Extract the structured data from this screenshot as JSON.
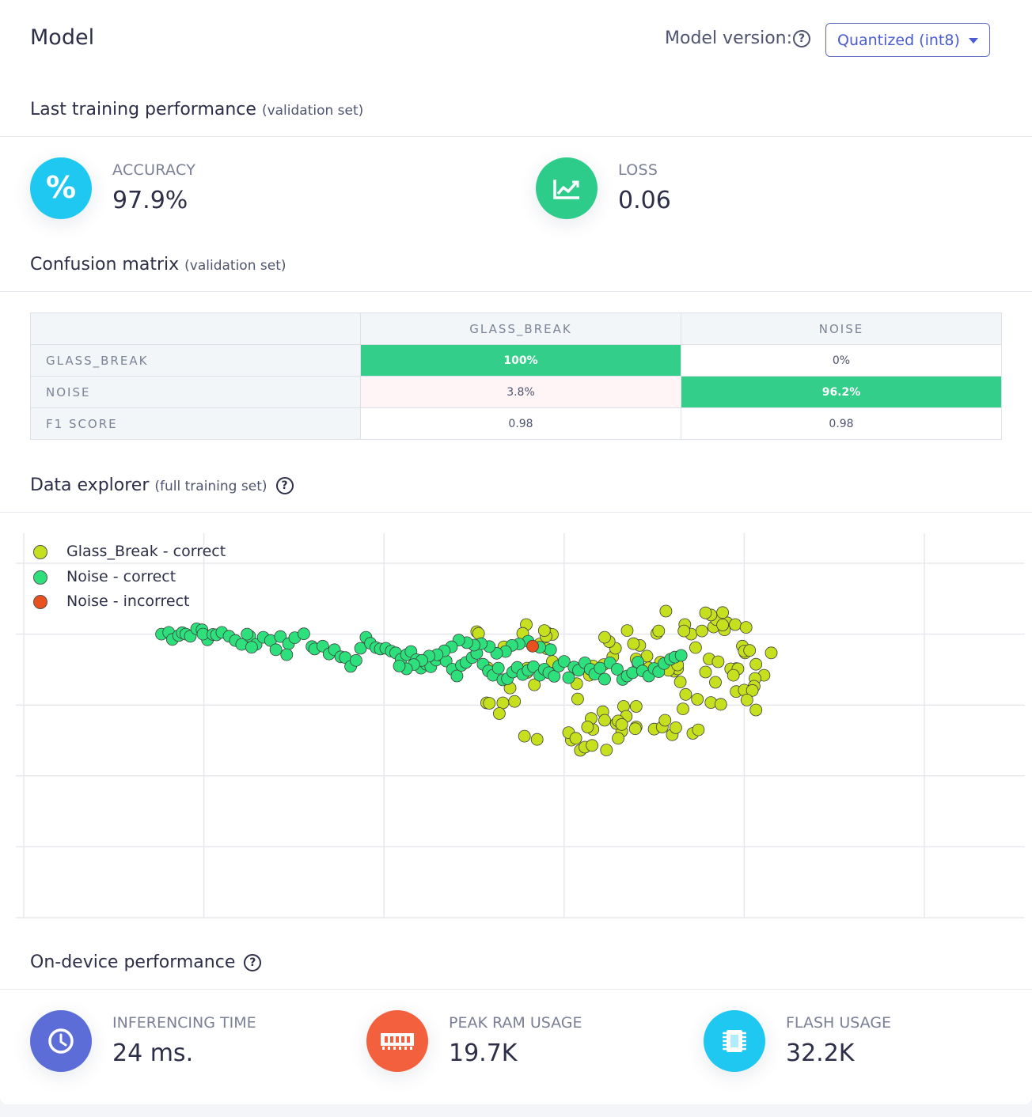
{
  "header": {
    "title": "Model",
    "model_version_label": "Model version:",
    "model_version_value": "Quantized (int8)"
  },
  "training": {
    "title": "Last training performance",
    "subtitle": "(validation set)",
    "accuracy_label": "ACCURACY",
    "accuracy_value": "97.9%",
    "loss_label": "LOSS",
    "loss_value": "0.06",
    "accuracy_icon": "percent-icon",
    "loss_icon": "chart-trend-icon",
    "accuracy_color": "#1ec8f0",
    "loss_color": "#2ecc8a"
  },
  "confusion": {
    "title": "Confusion matrix",
    "subtitle": "(validation set)",
    "columns": [
      "GLASS_BREAK",
      "NOISE"
    ],
    "rows": [
      {
        "label": "GLASS_BREAK",
        "cells": [
          "100%",
          "0%"
        ]
      },
      {
        "label": "NOISE",
        "cells": [
          "3.8%",
          "96.2%"
        ]
      },
      {
        "label": "F1 SCORE",
        "cells": [
          "0.98",
          "0.98"
        ]
      }
    ]
  },
  "explorer": {
    "title": "Data explorer",
    "subtitle": "(full training set)",
    "legend": [
      {
        "label": "Glass_Break - correct",
        "color": "#c6e020"
      },
      {
        "label": "Noise - correct",
        "color": "#2ee07c"
      },
      {
        "label": "Noise - incorrect",
        "color": "#e8501e"
      }
    ]
  },
  "chart_data": {
    "type": "scatter",
    "grid": true,
    "legend_position": "top-left",
    "xlim": [
      0,
      100
    ],
    "ylim": [
      0,
      100
    ],
    "series": [
      {
        "name": "Glass_Break - correct",
        "color": "#c6e020",
        "x": [
          50.3,
          50.5,
          55.8,
          55.4,
          58.1,
          58.7,
          53.3,
          57.3,
          58.1,
          55.9,
          55.9,
          54.5,
          61.5,
          64.3,
          66.6,
          68.0,
          68.0,
          70.0,
          66.4,
          67.9,
          70.9,
          71.2,
          72.0,
          74.3,
          73.2,
          76.8,
          72.2,
          72.9,
          75.7,
          79.1,
          78.5,
          80.1,
          79.8,
          80.0,
          81.3,
          79.3,
          82.2,
          81.2,
          78.8,
          81.1,
          79.1,
          80.0,
          80.9,
          80.3,
          81.3,
          76.3,
          77.4,
          74.8,
          73.5,
          72.6,
          70.7,
          71.6,
          72.6,
          76.1,
          77.1,
          69.2,
          68.4,
          68.0,
          68.2,
          69.4,
          67.7,
          74.1,
          73.4,
          75.3,
          76.6,
          76.9,
          78.1,
          77.6,
          77.8,
          76.3,
          77.6,
          79.0,
          80.2,
          71.3,
          75.7,
          58.0,
          57.8,
          58.7,
          56.7,
          54.0,
          51.5,
          51.4,
          51.7,
          53.2,
          52.8,
          55.6,
          57.0,
          60.8,
          60.5,
          63.2,
          63.0,
          65.8,
          66.0,
          61.8,
          62.3,
          64.7,
          63.1,
          61.3,
          62.6,
          64.5,
          66.9,
          66.0,
          66.4,
          61.4,
          62.8,
          63.2,
          64.4,
          65.4,
          65.7,
          65.0,
          64.5,
          67.0,
          70.3,
          73.3,
          70.5,
          74.6,
          80.6,
          72.4,
          74.9,
          83.0
        ],
        "y": [
          80.7,
          80.2,
          82.7,
          80.2,
          80.4,
          79.9,
          76.4,
          77.2,
          75.9,
          70.4,
          69.2,
          61.0,
          61.7,
          58.1,
          59.6,
          59.6,
          53.8,
          53.2,
          52.6,
          53.3,
          53.8,
          55.7,
          51.6,
          52.0,
          58.9,
          66.4,
          69.5,
          66.5,
          69.3,
          70.3,
          70.2,
          74.7,
          76.6,
          75.2,
          71.5,
          70.2,
          68.4,
          67.5,
          68.4,
          65.3,
          63.8,
          64.2,
          64.1,
          61.4,
          58.6,
          60.7,
          60.2,
          61.6,
          63.0,
          70.2,
          72.1,
          69.8,
          71.3,
          73.0,
          72.2,
          73.8,
          76.8,
          73.0,
          71.7,
          70.5,
          77.3,
          80.0,
          82.7,
          80.9,
          82.0,
          84.1,
          83.2,
          86.1,
          81.2,
          85.4,
          82.6,
          82.7,
          81.9,
          86.5,
          86.0,
          79.4,
          81.0,
          72.3,
          65.7,
          64.8,
          70.5,
          60.6,
          60.5,
          60.6,
          57.6,
          51.2,
          50.3,
          50.1,
          52.2,
          53.1,
          56.2,
          54.8,
          50.6,
          47.2,
          48.1,
          47.3,
          48.6,
          50.6,
          53.8,
          55.7,
          56.8,
          55.5,
          54.5,
          66.0,
          68.4,
          71.0,
          71.4,
          73.6,
          76.0,
          77.9,
          79.1,
          81.0,
          80.2,
          80.9,
          80.9,
          76.2,
          75.4,
          53.6,
          53.0,
          74.7
        ]
      },
      {
        "name": "Noise - correct",
        "color": "#2ee07c",
        "x": [
          15.3,
          16.1,
          16.5,
          17.2,
          17.6,
          18.0,
          18.5,
          19.2,
          19.8,
          20.4,
          19.9,
          21.0,
          21.4,
          22.0,
          22.8,
          23.5,
          24.2,
          25.1,
          24.8,
          25.8,
          25.3,
          26.6,
          27.4,
          28.0,
          28.5,
          29.4,
          29.2,
          30.1,
          31.1,
          32.0,
          32.3,
          33.2,
          33.9,
          34.5,
          35.2,
          35.7,
          36.3,
          36.9,
          37.4,
          38.0,
          38.5,
          39.1,
          39.6,
          40.2,
          40.8,
          41.3,
          41.9,
          42.5,
          43.0,
          43.6,
          44.1,
          44.7,
          45.2,
          45.8,
          46.3,
          46.9,
          47.6,
          48.1,
          48.6,
          49.1,
          49.8,
          50.3,
          51.0,
          51.6,
          52.1,
          52.7,
          53.2,
          53.7,
          54.3,
          54.8,
          55.4,
          56.0,
          56.6,
          57.3,
          57.8,
          58.3,
          58.9,
          59.4,
          60.0,
          60.5,
          61.1,
          61.6,
          62.3,
          62.9,
          63.4,
          64.0,
          64.5,
          65.1,
          65.9,
          66.5,
          67.0,
          67.6,
          68.2,
          68.7,
          69.4,
          70.0,
          70.5,
          71.1,
          71.8,
          72.3,
          73.0,
          58.5,
          57.3,
          56.0,
          55.0,
          54.2,
          53.5,
          52.5,
          51.7,
          50.8,
          50.0,
          49.2,
          48.3,
          47.5,
          46.7,
          45.9,
          45.0,
          44.2,
          43.3,
          42.5,
          41.7
        ],
        "y": [
          80.0,
          80.5,
          78.5,
          79.6,
          80.4,
          80.0,
          79.4,
          81.5,
          81.2,
          78.4,
          80.0,
          79.9,
          79.8,
          80.5,
          79.4,
          78.2,
          77.1,
          79.4,
          80.0,
          77.1,
          76.3,
          79.1,
          78.2,
          75.6,
          79.3,
          77.3,
          74.2,
          79.0,
          80.1,
          76.5,
          75.8,
          76.6,
          74.4,
          75.6,
          73.6,
          73.4,
          70.9,
          72.6,
          76.0,
          79.1,
          77.4,
          76.2,
          75.8,
          76.0,
          75.2,
          74.7,
          72.9,
          74.2,
          75.1,
          72.8,
          70.4,
          71.5,
          70.8,
          72.7,
          74.1,
          72.4,
          70.1,
          68.2,
          71.2,
          72.0,
          73.4,
          74.6,
          71.5,
          69.6,
          68.4,
          70.4,
          67.1,
          67.4,
          69.3,
          70.6,
          68.6,
          69.8,
          70.8,
          68.4,
          70.1,
          69.1,
          68.1,
          71.0,
          72.3,
          67.7,
          70.7,
          69.8,
          71.9,
          70.1,
          68.7,
          70.4,
          67.3,
          71.9,
          70.1,
          67.2,
          68.2,
          69.1,
          72.1,
          69.6,
          68.2,
          70.3,
          69.4,
          71.7,
          72.9,
          73.5,
          74.0,
          75.6,
          76.3,
          78.0,
          77.2,
          76.8,
          75.1,
          74.6,
          76.5,
          77.3,
          76.9,
          77.6,
          78.3,
          76.4,
          75.3,
          74.2,
          73.8,
          72.6,
          71.4,
          70.2,
          71.0
        ]
      },
      {
        "name": "Noise - incorrect",
        "color": "#e8501e",
        "x": [
          56.5
        ],
        "y": [
          76.6
        ]
      }
    ]
  },
  "ondevice": {
    "title": "On-device performance",
    "metrics": [
      {
        "label": "INFERENCING TIME",
        "value": "24 ms.",
        "color": "#5c6dd8",
        "icon": "clock-icon"
      },
      {
        "label": "PEAK RAM USAGE",
        "value": "19.7K",
        "color": "#f2603e",
        "icon": "ram-icon"
      },
      {
        "label": "FLASH USAGE",
        "value": "32.2K",
        "color": "#1ec8f0",
        "icon": "chip-icon"
      }
    ]
  }
}
